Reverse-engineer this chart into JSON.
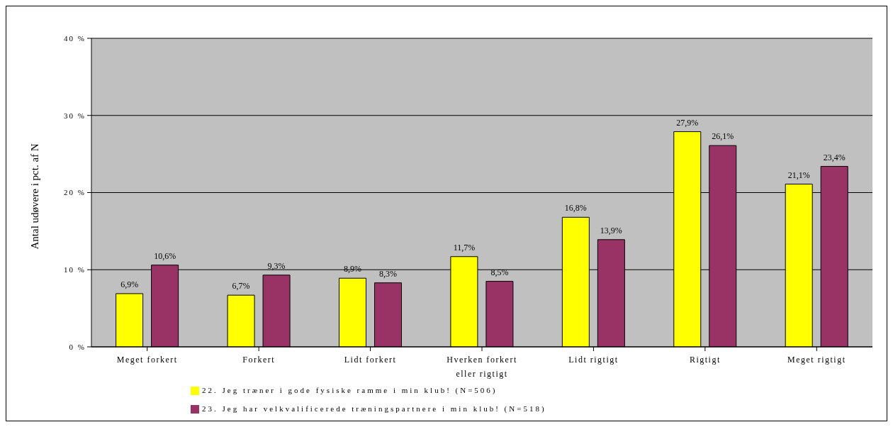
{
  "chart_data": {
    "type": "bar",
    "ylabel": "Antal udøvere i pct. af N",
    "categories": [
      "Meget forkert",
      "Forkert",
      "Lidt forkert",
      "Hverken forkert eller rigtigt",
      "Lidt rigtigt",
      "Rigtigt",
      "Meget rigtigt"
    ],
    "series": [
      {
        "name": "22. Jeg træner i gode fysiske ramme i min klub! (N=506)",
        "color": "#ffff00",
        "values": [
          6.9,
          6.7,
          8.9,
          11.7,
          16.8,
          27.9,
          21.1
        ],
        "value_labels": [
          "6,9%",
          "6,7%",
          "8,9%",
          "11,7%",
          "16,8%",
          "27,9%",
          "21,1%"
        ]
      },
      {
        "name": "23. Jeg har velkvalificerede træningspartnere i min klub! (N=518)",
        "color": "#993366",
        "values": [
          10.6,
          9.3,
          8.3,
          8.5,
          13.9,
          26.1,
          23.4
        ],
        "value_labels": [
          "10,6%",
          "9,3%",
          "8,3%",
          "8,5%",
          "13,9%",
          "26,1%",
          "23,4%"
        ]
      }
    ],
    "ylim": [
      0,
      40
    ],
    "yticks": [
      {
        "value": 0,
        "label": "0 %"
      },
      {
        "value": 10,
        "label": "10 %"
      },
      {
        "value": 20,
        "label": "20 %"
      },
      {
        "value": 30,
        "label": "30 %"
      },
      {
        "value": 40,
        "label": "40 %"
      }
    ],
    "grid": "y",
    "legend": "bottom"
  }
}
